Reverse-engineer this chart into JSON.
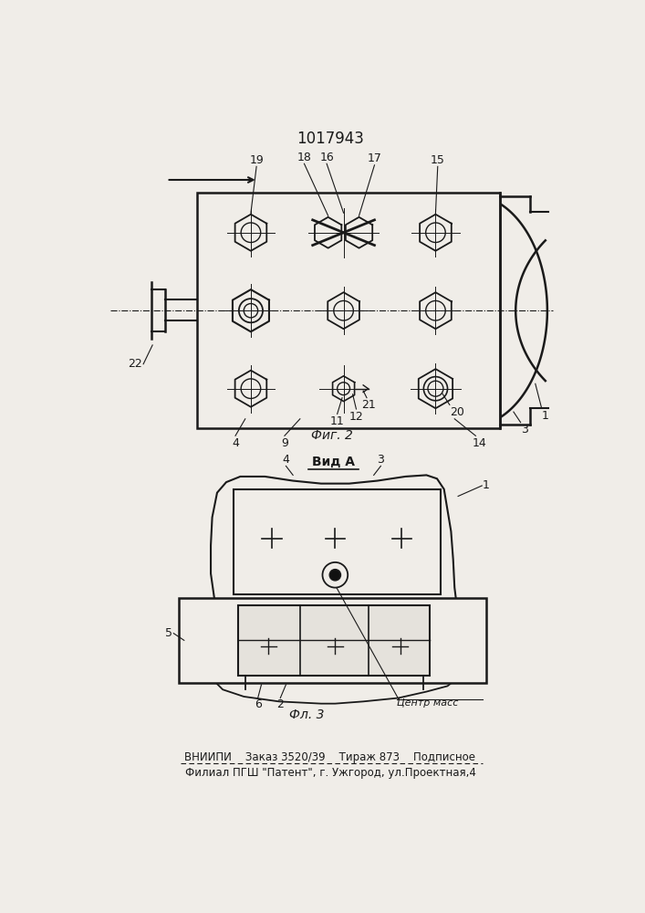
{
  "title": "1017943",
  "footer_line1": "ВНИИПИ    Заказ 3520/39    Тираж 873    Подписное",
  "footer_line2": "Филиал ПГШ \"Патент\", г. Ужгород, ул.Проектная,4",
  "fig2_label": "Фиг. 2",
  "fig3_label": "Фл. 3",
  "view_a_label": "Вид А",
  "bg_color": "#f0ede8",
  "line_color": "#1a1a1a"
}
